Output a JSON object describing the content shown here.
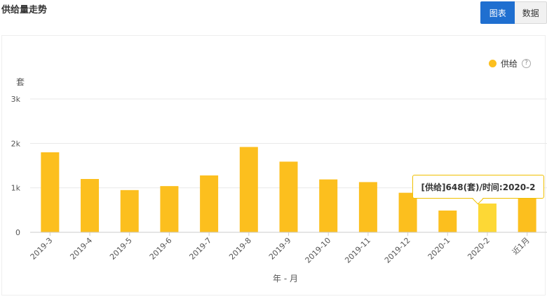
{
  "page": {
    "title": "供给量走势"
  },
  "toggle": {
    "chart_label": "图表",
    "data_label": "数据"
  },
  "tooltip": {
    "text": "[供给]648(套)/时间:2020-2"
  },
  "help_glyph": "?",
  "colors": {
    "bar": "#fcbf1e",
    "bar_highlight": "#fdd835",
    "accent": "#1f6fd0",
    "grid": "#e8e8e8"
  },
  "chart_data": {
    "type": "bar",
    "categories": [
      "2019-3",
      "2019-4",
      "2019-5",
      "2019-6",
      "2019-7",
      "2019-8",
      "2019-9",
      "2019-10",
      "2019-11",
      "2019-12",
      "2020-1",
      "2020-2",
      "近1月"
    ],
    "series": [
      {
        "name": "供给",
        "values": [
          1800,
          1200,
          950,
          1040,
          1280,
          1920,
          1590,
          1190,
          1130,
          890,
          490,
          648,
          760
        ]
      }
    ],
    "xlabel": "年 - 月",
    "ylabel": "套",
    "ylim": [
      0,
      3000
    ],
    "yticks": [
      0,
      1000,
      2000,
      3000
    ],
    "ytick_labels": [
      "0",
      "1k",
      "2k",
      "3k"
    ],
    "highlight_index": 11,
    "grid": true,
    "legend": "top-right"
  }
}
